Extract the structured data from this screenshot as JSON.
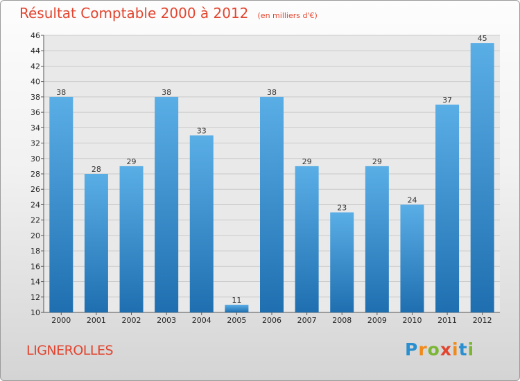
{
  "chart_data": {
    "type": "bar",
    "title": "Résultat Comptable 2000 à 2012",
    "subtitle": "(en milliers d'€)",
    "categories": [
      "2000",
      "2001",
      "2002",
      "2003",
      "2004",
      "2005",
      "2006",
      "2007",
      "2008",
      "2009",
      "2010",
      "2011",
      "2012"
    ],
    "values": [
      38,
      28,
      29,
      38,
      33,
      11,
      38,
      29,
      23,
      29,
      24,
      37,
      45
    ],
    "ylim": [
      10,
      46
    ],
    "yticks": [
      10,
      12,
      14,
      16,
      18,
      20,
      22,
      24,
      26,
      28,
      30,
      32,
      34,
      36,
      38,
      40,
      42,
      44,
      46
    ],
    "grid": true,
    "xlabel": "",
    "ylabel": "",
    "bar_color_top": "#5aaee6",
    "bar_color_bottom": "#1f6fb0"
  },
  "commune": "LIGNEROLLES",
  "logo": {
    "letters": [
      "P",
      "r",
      "o",
      "x",
      "i",
      "t",
      "i"
    ],
    "colors": [
      "#2a8fd0",
      "#f08a1a",
      "#7ab534",
      "#e2442e",
      "#f08a1a",
      "#2a8fd0",
      "#7ab534"
    ]
  },
  "colors": {
    "accent": "#e2442e"
  }
}
